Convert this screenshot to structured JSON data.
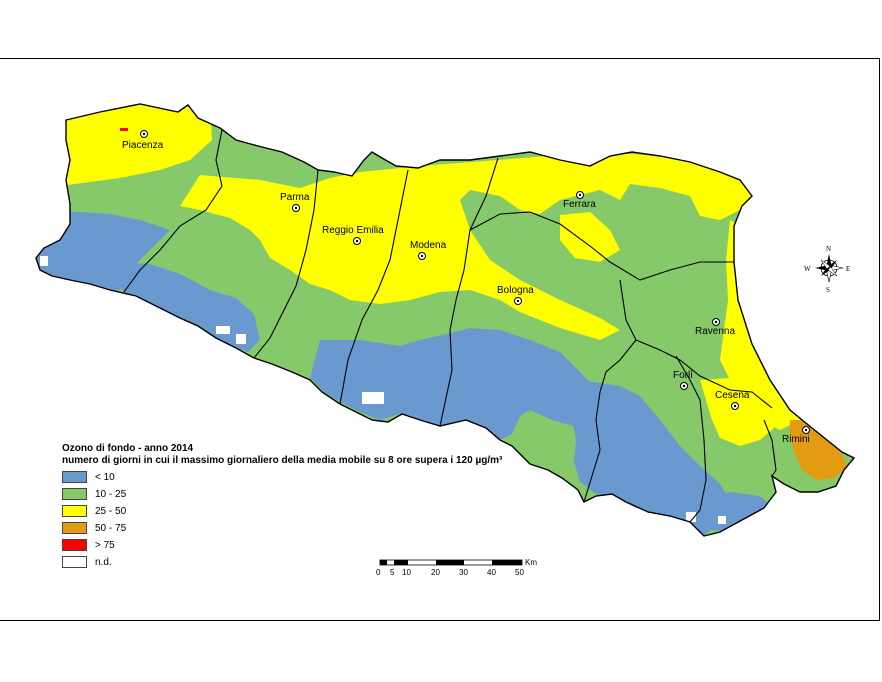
{
  "legend": {
    "title": "Ozono di fondo - anno 2014",
    "subtitle": "numero di giorni in cui il massimo giornaliero della media mobile su 8 ore supera i 120 µg/m³",
    "classes": [
      {
        "label": "< 10",
        "color": "#6a99d0"
      },
      {
        "label": "10 - 25",
        "color": "#86c96a"
      },
      {
        "label": "25 - 50",
        "color": "#ffff00"
      },
      {
        "label": "50 - 75",
        "color": "#e39b12"
      },
      {
        "label": "> 75",
        "color": "#ff0000"
      },
      {
        "label": "n.d.",
        "color": "#ffffff"
      }
    ]
  },
  "cities": [
    {
      "name": "Piacenza"
    },
    {
      "name": "Parma"
    },
    {
      "name": "Reggio Emilia"
    },
    {
      "name": "Modena"
    },
    {
      "name": "Ferrara"
    },
    {
      "name": "Bologna"
    },
    {
      "name": "Ravenna"
    },
    {
      "name": "Forlì"
    },
    {
      "name": "Cesena"
    },
    {
      "name": "Rimini"
    }
  ],
  "compass": {
    "n": "N",
    "s": "S",
    "e": "E",
    "w": "W"
  },
  "scale_bar": {
    "unit": "Km",
    "ticks": [
      "0",
      "5",
      "10",
      "20",
      "30",
      "40",
      "50"
    ]
  }
}
